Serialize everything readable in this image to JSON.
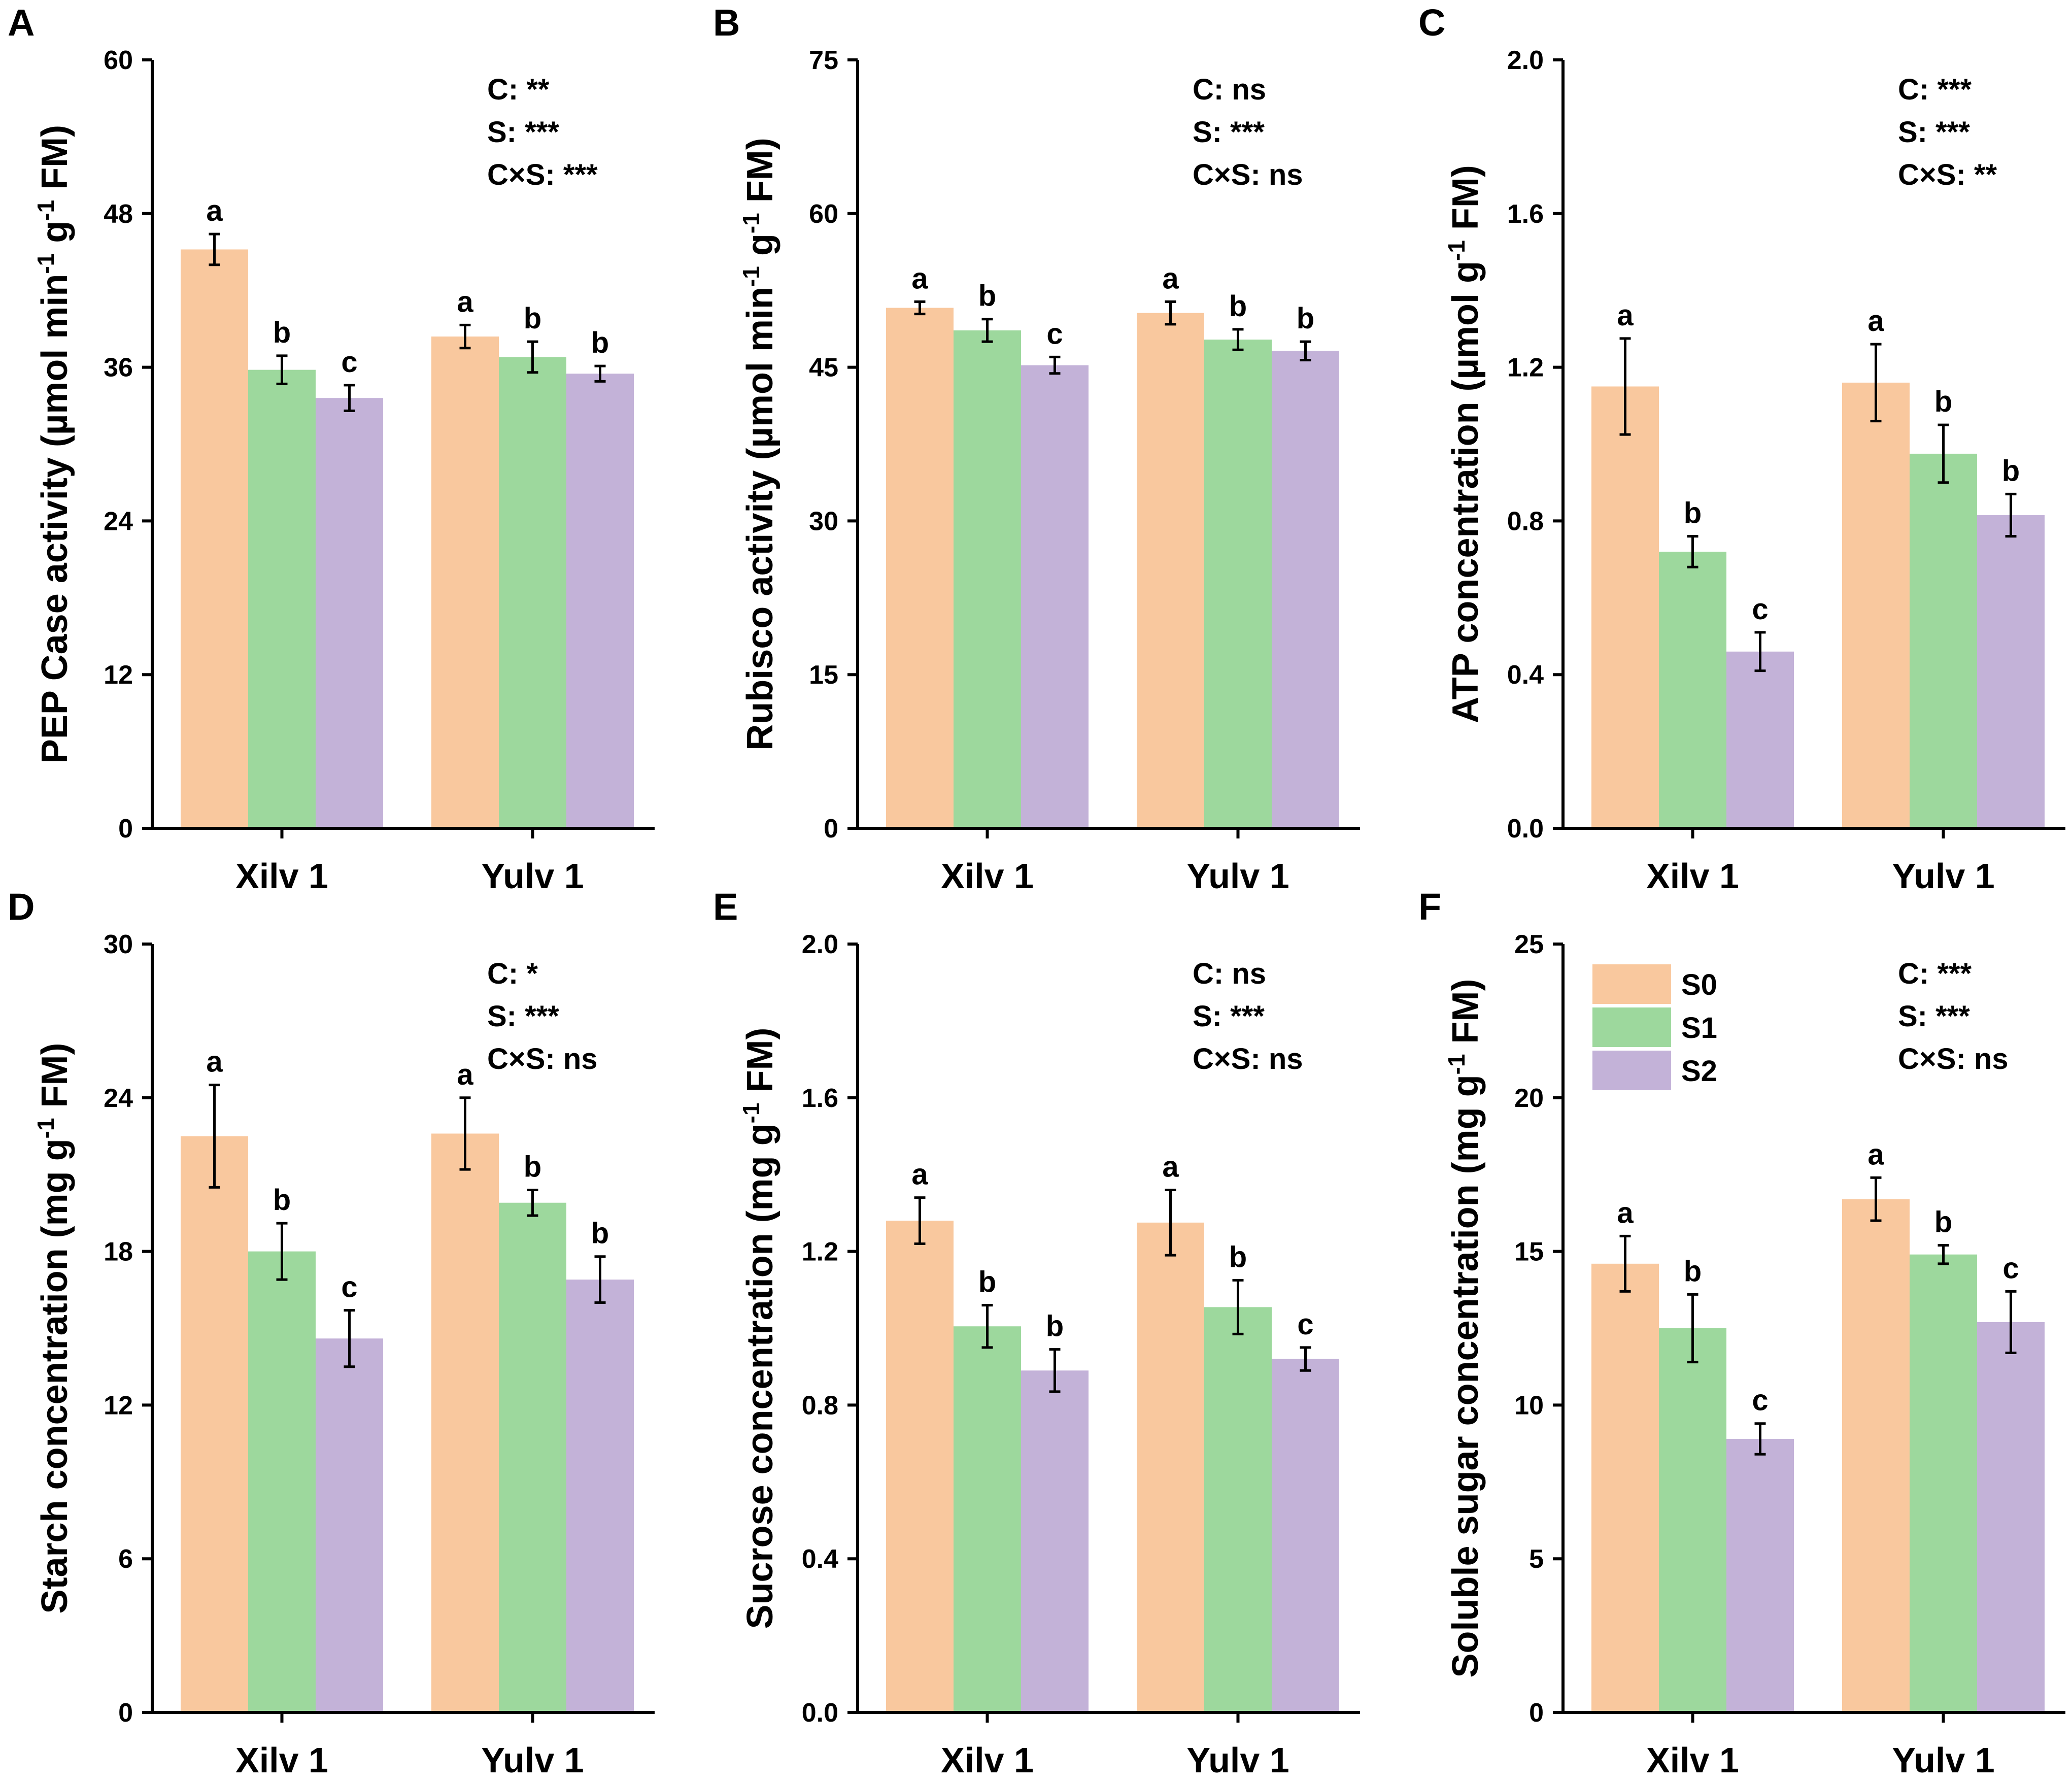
{
  "figure": {
    "series_names": [
      "S0",
      "S1",
      "S2"
    ],
    "series_colors": [
      "#F9C89E",
      "#9DD89D",
      "#C3B2D8"
    ],
    "legend": {
      "panel": "F",
      "entries": [
        "S0",
        "S1",
        "S2"
      ]
    }
  },
  "chart_data": [
    {
      "panel": "A",
      "type": "bar",
      "categories": [
        "Xilv 1",
        "Yulv 1"
      ],
      "ylabel_parts": [
        "PEP Case activity (µmol min",
        "-1",
        " g",
        "-1",
        " FM)"
      ],
      "ylim": [
        0,
        60
      ],
      "yticks": [
        "0",
        "12",
        "24",
        "36",
        "48",
        "60"
      ],
      "series": [
        {
          "name": "S0",
          "values": [
            45.2,
            38.4
          ],
          "errors": [
            1.2,
            0.9
          ],
          "letters": [
            "a",
            "a"
          ]
        },
        {
          "name": "S1",
          "values": [
            35.8,
            36.8
          ],
          "errors": [
            1.1,
            1.2
          ],
          "letters": [
            "b",
            "b"
          ]
        },
        {
          "name": "S2",
          "values": [
            33.6,
            35.5
          ],
          "errors": [
            1.0,
            0.6
          ],
          "letters": [
            "c",
            "b"
          ]
        }
      ],
      "stats": [
        "C: **",
        "S: ***",
        "C×S: ***"
      ]
    },
    {
      "panel": "B",
      "type": "bar",
      "categories": [
        "Xilv 1",
        "Yulv 1"
      ],
      "ylabel_parts": [
        "Rubisco activity (µmol min",
        "-1",
        " g",
        "-1",
        " FM)"
      ],
      "ylim": [
        0,
        75
      ],
      "yticks": [
        "0",
        "15",
        "30",
        "45",
        "60",
        "75"
      ],
      "series": [
        {
          "name": "S0",
          "values": [
            50.8,
            50.3
          ],
          "errors": [
            0.6,
            1.1
          ],
          "letters": [
            "a",
            "a"
          ]
        },
        {
          "name": "S1",
          "values": [
            48.6,
            47.7
          ],
          "errors": [
            1.1,
            1.0
          ],
          "letters": [
            "b",
            "b"
          ]
        },
        {
          "name": "S2",
          "values": [
            45.2,
            46.6
          ],
          "errors": [
            0.8,
            0.9
          ],
          "letters": [
            "c",
            "b"
          ]
        }
      ],
      "stats": [
        "C: ns",
        "S: ***",
        "C×S: ns"
      ]
    },
    {
      "panel": "C",
      "type": "bar",
      "categories": [
        "Xilv 1",
        "Yulv 1"
      ],
      "ylabel_parts": [
        "ATP concentration (µmol g",
        "-1",
        " FM)"
      ],
      "ylim": [
        0,
        2.0
      ],
      "yticks": [
        "0.0",
        "0.4",
        "0.8",
        "1.2",
        "1.6",
        "2.0"
      ],
      "series": [
        {
          "name": "S0",
          "values": [
            1.15,
            1.16
          ],
          "errors": [
            0.125,
            0.1
          ],
          "letters": [
            "a",
            "a"
          ]
        },
        {
          "name": "S1",
          "values": [
            0.72,
            0.975
          ],
          "errors": [
            0.04,
            0.075
          ],
          "letters": [
            "b",
            "b"
          ]
        },
        {
          "name": "S2",
          "values": [
            0.46,
            0.815
          ],
          "errors": [
            0.05,
            0.055
          ],
          "letters": [
            "c",
            "b"
          ]
        }
      ],
      "stats": [
        "C: ***",
        "S: ***",
        "C×S: **"
      ]
    },
    {
      "panel": "D",
      "type": "bar",
      "categories": [
        "Xilv 1",
        "Yulv 1"
      ],
      "ylabel_parts": [
        "Starch concentration (mg g",
        "-1",
        " FM)"
      ],
      "ylim": [
        0,
        30
      ],
      "yticks": [
        "0",
        "6",
        "12",
        "18",
        "24",
        "30"
      ],
      "series": [
        {
          "name": "S0",
          "values": [
            22.5,
            22.6
          ],
          "errors": [
            2.0,
            1.4
          ],
          "letters": [
            "a",
            "a"
          ]
        },
        {
          "name": "S1",
          "values": [
            18.0,
            19.9
          ],
          "errors": [
            1.1,
            0.5
          ],
          "letters": [
            "b",
            "b"
          ]
        },
        {
          "name": "S2",
          "values": [
            14.6,
            16.9
          ],
          "errors": [
            1.1,
            0.9
          ],
          "letters": [
            "c",
            "b"
          ]
        }
      ],
      "stats": [
        "C: *",
        "S: ***",
        "C×S: ns"
      ]
    },
    {
      "panel": "E",
      "type": "bar",
      "categories": [
        "Xilv 1",
        "Yulv 1"
      ],
      "ylabel_parts": [
        "Sucrose concentration (mg g",
        "-1",
        " FM)"
      ],
      "ylim": [
        0,
        2.0
      ],
      "yticks": [
        "0.0",
        "0.4",
        "0.8",
        "1.2",
        "1.6",
        "2.0"
      ],
      "series": [
        {
          "name": "S0",
          "values": [
            1.28,
            1.275
          ],
          "errors": [
            0.06,
            0.085
          ],
          "letters": [
            "a",
            "a"
          ]
        },
        {
          "name": "S1",
          "values": [
            1.005,
            1.055
          ],
          "errors": [
            0.055,
            0.07
          ],
          "letters": [
            "b",
            "b"
          ]
        },
        {
          "name": "S2",
          "values": [
            0.89,
            0.92
          ],
          "errors": [
            0.055,
            0.03
          ],
          "letters": [
            "b",
            "c"
          ]
        }
      ],
      "stats": [
        "C: ns",
        "S: ***",
        "C×S: ns"
      ]
    },
    {
      "panel": "F",
      "type": "bar",
      "categories": [
        "Xilv 1",
        "Yulv 1"
      ],
      "ylabel_parts": [
        "Soluble sugar concentration (mg g",
        "-1",
        " FM)"
      ],
      "ylim": [
        0,
        25
      ],
      "yticks": [
        "0",
        "5",
        "10",
        "15",
        "20",
        "25"
      ],
      "series": [
        {
          "name": "S0",
          "values": [
            14.6,
            16.7
          ],
          "errors": [
            0.9,
            0.7
          ],
          "letters": [
            "a",
            "a"
          ]
        },
        {
          "name": "S1",
          "values": [
            12.5,
            14.9
          ],
          "errors": [
            1.1,
            0.3
          ],
          "letters": [
            "b",
            "b"
          ]
        },
        {
          "name": "S2",
          "values": [
            8.9,
            12.7
          ],
          "errors": [
            0.5,
            1.0
          ],
          "letters": [
            "c",
            "c"
          ]
        }
      ],
      "stats": [
        "C: ***",
        "S: ***",
        "C×S: ns"
      ]
    }
  ]
}
